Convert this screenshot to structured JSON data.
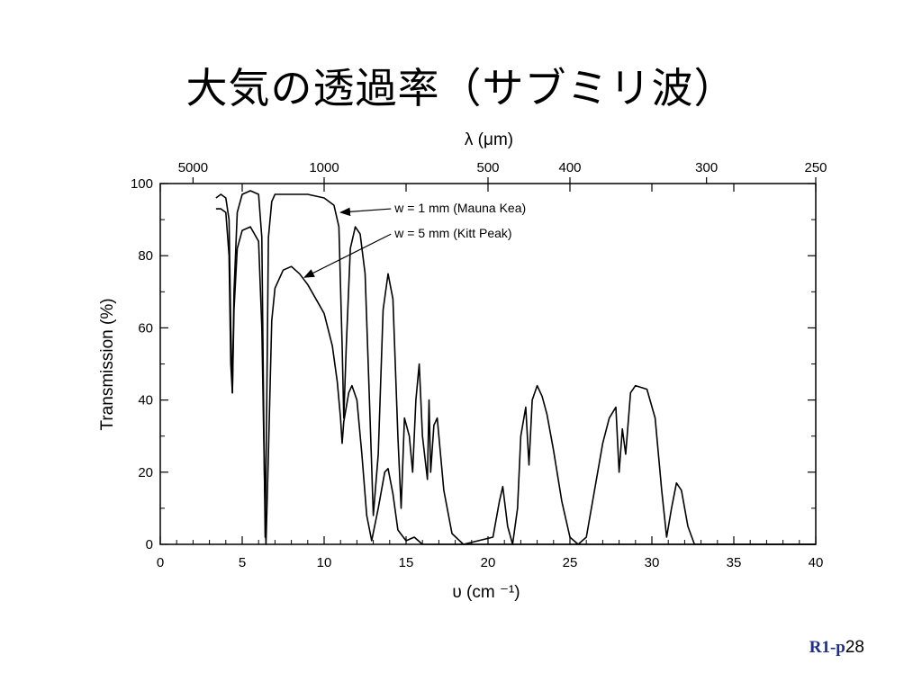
{
  "slide": {
    "title": "大気の透過率（サブミリ波）",
    "page_prefix": "R1-p",
    "page_number": "28",
    "page_color": "#1f2d8f"
  },
  "chart_data": {
    "type": "line",
    "xlabel": "υ (cm ⁻¹)",
    "ylabel": "Transmission (%)",
    "top_axis_label": "λ (μm)",
    "xlim": [
      0,
      40
    ],
    "ylim": [
      0,
      100
    ],
    "x_ticks": [
      "0",
      "5",
      "10",
      "15",
      "20",
      "25",
      "30",
      "35",
      "40"
    ],
    "y_ticks": [
      "0",
      "20",
      "40",
      "60",
      "80",
      "100"
    ],
    "top_ticks": [
      "5000",
      "1000",
      "500",
      "400",
      "300",
      "250"
    ],
    "grid": false,
    "series": [
      {
        "name": "w = 1 mm (Mauna Kea)",
        "color": "#000000",
        "points": [
          [
            3.4,
            96
          ],
          [
            3.7,
            97
          ],
          [
            4.0,
            96
          ],
          [
            4.2,
            90
          ],
          [
            4.3,
            60
          ],
          [
            4.4,
            42
          ],
          [
            4.5,
            70
          ],
          [
            4.7,
            92
          ],
          [
            5.0,
            97
          ],
          [
            5.5,
            98
          ],
          [
            6.0,
            97
          ],
          [
            6.2,
            85
          ],
          [
            6.3,
            40
          ],
          [
            6.4,
            2
          ],
          [
            6.5,
            40
          ],
          [
            6.6,
            85
          ],
          [
            6.8,
            95
          ],
          [
            7.0,
            97
          ],
          [
            8.0,
            97
          ],
          [
            9.0,
            97
          ],
          [
            10.0,
            96
          ],
          [
            10.6,
            94
          ],
          [
            10.9,
            88
          ],
          [
            11.1,
            55
          ],
          [
            11.2,
            35
          ],
          [
            11.35,
            55
          ],
          [
            11.6,
            82
          ],
          [
            11.9,
            88
          ],
          [
            12.2,
            86
          ],
          [
            12.5,
            75
          ],
          [
            12.8,
            35
          ],
          [
            13.0,
            8
          ],
          [
            13.3,
            25
          ],
          [
            13.6,
            65
          ],
          [
            13.9,
            75
          ],
          [
            14.2,
            68
          ],
          [
            14.5,
            30
          ],
          [
            14.7,
            10
          ],
          [
            14.9,
            35
          ],
          [
            15.2,
            30
          ],
          [
            15.4,
            20
          ],
          [
            15.6,
            40
          ],
          [
            15.8,
            50
          ],
          [
            16.0,
            30
          ],
          [
            16.3,
            18
          ],
          [
            16.4,
            40
          ],
          [
            16.5,
            20
          ],
          [
            16.7,
            33
          ],
          [
            16.9,
            35
          ],
          [
            17.3,
            15
          ],
          [
            17.8,
            3
          ],
          [
            18.5,
            0
          ],
          [
            20.3,
            2
          ],
          [
            20.7,
            12
          ],
          [
            20.9,
            16
          ],
          [
            21.2,
            5
          ],
          [
            21.5,
            0
          ],
          [
            21.8,
            10
          ],
          [
            22.0,
            30
          ],
          [
            22.3,
            38
          ],
          [
            22.5,
            22
          ],
          [
            22.7,
            40
          ],
          [
            23.0,
            44
          ],
          [
            23.3,
            41
          ],
          [
            23.6,
            36
          ],
          [
            24.0,
            26
          ],
          [
            24.5,
            12
          ],
          [
            25.0,
            2
          ],
          [
            25.5,
            0
          ],
          [
            26.0,
            2
          ],
          [
            26.5,
            15
          ],
          [
            27.0,
            28
          ],
          [
            27.4,
            35
          ],
          [
            27.8,
            38
          ],
          [
            28.0,
            20
          ],
          [
            28.2,
            32
          ],
          [
            28.4,
            25
          ],
          [
            28.7,
            42
          ],
          [
            29.0,
            44
          ],
          [
            29.7,
            43
          ],
          [
            30.2,
            35
          ],
          [
            30.6,
            15
          ],
          [
            30.9,
            2
          ],
          [
            31.2,
            10
          ],
          [
            31.5,
            17
          ],
          [
            31.8,
            15
          ],
          [
            32.2,
            5
          ],
          [
            32.6,
            0
          ],
          [
            40,
            0
          ]
        ]
      },
      {
        "name": "w = 5 mm (Kitt Peak)",
        "color": "#000000",
        "points": [
          [
            3.4,
            93
          ],
          [
            3.7,
            93
          ],
          [
            4.0,
            92
          ],
          [
            4.2,
            80
          ],
          [
            4.3,
            50
          ],
          [
            4.4,
            42
          ],
          [
            4.5,
            65
          ],
          [
            4.7,
            82
          ],
          [
            5.0,
            87
          ],
          [
            5.5,
            88
          ],
          [
            6.0,
            84
          ],
          [
            6.2,
            60
          ],
          [
            6.35,
            20
          ],
          [
            6.45,
            0
          ],
          [
            6.6,
            25
          ],
          [
            6.8,
            62
          ],
          [
            7.0,
            71
          ],
          [
            7.5,
            76
          ],
          [
            8.0,
            77
          ],
          [
            8.5,
            75
          ],
          [
            9.0,
            72
          ],
          [
            9.5,
            68
          ],
          [
            10.0,
            64
          ],
          [
            10.5,
            55
          ],
          [
            10.8,
            45
          ],
          [
            11.0,
            35
          ],
          [
            11.1,
            28
          ],
          [
            11.2,
            34
          ],
          [
            11.5,
            42
          ],
          [
            11.7,
            44
          ],
          [
            12.0,
            40
          ],
          [
            12.3,
            25
          ],
          [
            12.6,
            8
          ],
          [
            12.9,
            1
          ],
          [
            13.3,
            10
          ],
          [
            13.7,
            20
          ],
          [
            13.9,
            21
          ],
          [
            14.2,
            14
          ],
          [
            14.5,
            4
          ],
          [
            15.0,
            1
          ],
          [
            15.5,
            2
          ],
          [
            16.0,
            0
          ],
          [
            40,
            0
          ]
        ]
      }
    ],
    "annotations": [
      {
        "text": "w = 1 mm (Mauna Kea)",
        "x": 14.3,
        "y": 92,
        "arrow_to": [
          11.0,
          92
        ]
      },
      {
        "text": "w = 5 mm (Kitt Peak)",
        "x": 14.3,
        "y": 85,
        "arrow_to": [
          8.8,
          74
        ]
      }
    ]
  }
}
